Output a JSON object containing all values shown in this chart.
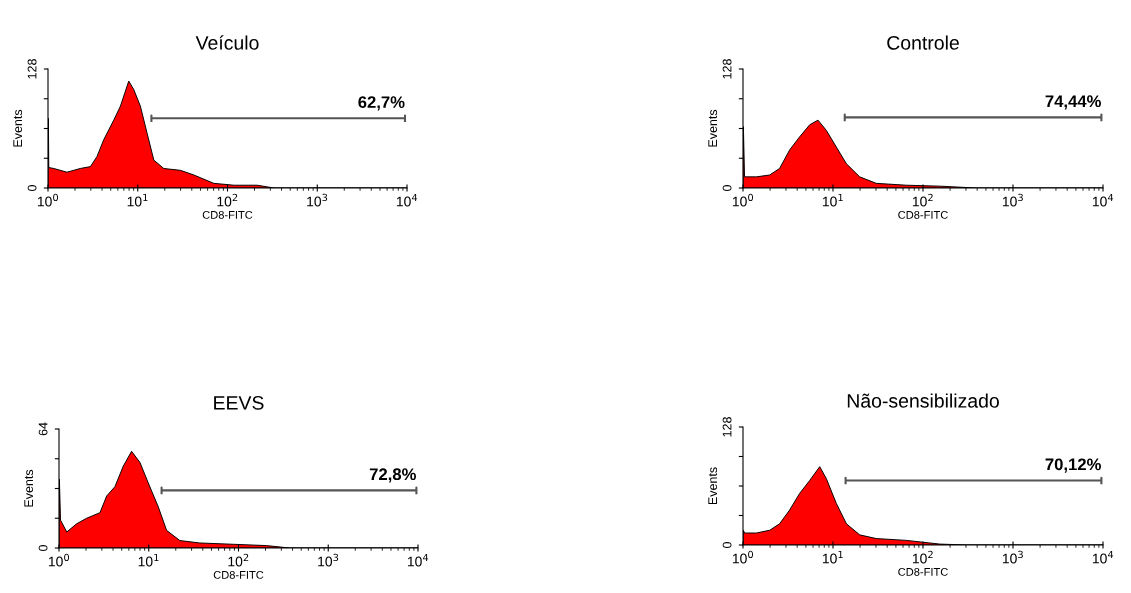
{
  "chart_data": [
    {
      "type": "area",
      "title": "Veículo",
      "xlabel": "CD8-FITC",
      "ylabel": "Events",
      "log": "x",
      "grid": false,
      "xlim": [
        1,
        10000
      ],
      "ylim": [
        0,
        128
      ],
      "xticks": [
        {
          "value": 1,
          "label": "10$^{0}$"
        },
        {
          "value": 10,
          "label": "10$^{1}$"
        },
        {
          "value": 100,
          "label": "10$^{2}$"
        },
        {
          "value": 1000,
          "label": "10$^{3}$"
        },
        {
          "value": 10000,
          "label": "10$^{4}$"
        }
      ],
      "yticks": [
        0,
        {
          "value": 32,
          "label": null
        },
        {
          "value": 64,
          "label": null
        },
        {
          "value": 96,
          "label": null
        },
        128
      ],
      "series": [
        {
          "type": "area",
          "color": "#ff0000",
          "x": [
            1.0,
            1.01,
            1.02,
            1.16,
            1.63,
            2.29,
            2.97,
            3.52,
            4.18,
            5.4,
            6.41,
            7.94,
            9.02,
            10.7,
            12.7,
            15.1,
            19.5,
            29.9,
            42.2,
            70.4,
            118,
            214,
            330,
            10000
          ],
          "values": [
            0,
            75,
            22,
            21,
            17,
            21,
            23,
            34,
            52,
            73,
            88,
            115,
            106,
            88,
            59,
            30,
            21,
            19,
            14,
            5,
            3,
            3,
            0,
            0
          ]
        },
        {
          "type": "line",
          "color": "#555555",
          "x": [
            14.2,
            14.2,
            14.2,
            9500,
            9500,
            9500
          ],
          "values": [
            72,
            78,
            75,
            75,
            78,
            72
          ]
        }
      ],
      "annotations": [
        "62,7%"
      ]
    },
    {
      "type": "area",
      "title": "Controle",
      "xlabel": "CD8-FITC",
      "ylabel": "Events",
      "log": "x",
      "grid": false,
      "xlim": [
        1,
        10000
      ],
      "ylim": [
        0,
        128
      ],
      "xticks": [
        {
          "value": 1,
          "label": "10$^{0}$"
        },
        {
          "value": 10,
          "label": "10$^{1}$"
        },
        {
          "value": 100,
          "label": "10$^{2}$"
        },
        {
          "value": 1000,
          "label": "10$^{3}$"
        },
        {
          "value": 10000,
          "label": "10$^{4}$"
        }
      ],
      "yticks": [
        0,
        {
          "value": 32,
          "label": null
        },
        {
          "value": 64,
          "label": null
        },
        {
          "value": 96,
          "label": null
        },
        128
      ],
      "series": [
        {
          "type": "area",
          "color": "#ff0000",
          "x": [
            1.0,
            1.01,
            1.04,
            1.41,
            1.98,
            2.55,
            3.3,
            4.26,
            5.51,
            6.81,
            8.43,
            10.9,
            14.1,
            19.8,
            30.2,
            65.3,
            153,
            390,
            10000
          ],
          "values": [
            0,
            66,
            12,
            12,
            14,
            21,
            41,
            55,
            68,
            73,
            62,
            44,
            26,
            12,
            5,
            3,
            2,
            0,
            0
          ]
        },
        {
          "type": "line",
          "color": "#555555",
          "x": [
            13.5,
            13.5,
            13.5,
            9600,
            9600,
            9600
          ],
          "values": [
            73,
            79,
            76,
            76,
            79,
            73
          ]
        }
      ],
      "annotations": [
        "74,44%"
      ]
    },
    {
      "type": "area",
      "title": "EEVS",
      "xlabel": "CD8-FITC",
      "ylabel": "Events",
      "log": "x",
      "grid": false,
      "xlim": [
        1,
        10000
      ],
      "ylim": [
        0,
        64
      ],
      "xticks": [
        {
          "value": 1,
          "label": "10$^{0}$"
        },
        {
          "value": 10,
          "label": "10$^{1}$"
        },
        {
          "value": 100,
          "label": "10$^{2}$"
        },
        {
          "value": 1000,
          "label": "10$^{3}$"
        },
        {
          "value": 10000,
          "label": "10$^{4}$"
        }
      ],
      "yticks": [
        0,
        {
          "value": 16,
          "label": null
        },
        {
          "value": 32,
          "label": null
        },
        {
          "value": 48,
          "label": null
        },
        64
      ],
      "series": [
        {
          "type": "area",
          "color": "#ff0000",
          "x": [
            1.0,
            1.01,
            1.04,
            1.22,
            1.57,
            2.03,
            2.86,
            3.4,
            4.2,
            5.2,
            6.44,
            7.98,
            9.87,
            12.8,
            15.8,
            22.2,
            37.1,
            87.6,
            204,
            372,
            10000
          ],
          "values": [
            0,
            37,
            15,
            8.6,
            13,
            16,
            19,
            28,
            33,
            44,
            52,
            46,
            35,
            22,
            9.5,
            4,
            2.7,
            2,
            1.3,
            0,
            0
          ]
        },
        {
          "type": "line",
          "color": "#555555",
          "x": [
            13.9,
            13.9,
            13.9,
            9600,
            9600,
            9600
          ],
          "values": [
            29.5,
            32.5,
            31,
            31,
            32.5,
            29.5
          ]
        }
      ],
      "annotations": [
        "72,8%"
      ]
    },
    {
      "type": "area",
      "title": "Não-sensibilizado",
      "xlabel": "CD8-FITC",
      "ylabel": "Events",
      "log": "x",
      "grid": false,
      "xlim": [
        1,
        10000
      ],
      "ylim": [
        0,
        128
      ],
      "xticks": [
        {
          "value": 1,
          "label": "10$^{0}$"
        },
        {
          "value": 10,
          "label": "10$^{1}$"
        },
        {
          "value": 100,
          "label": "10$^{2}$"
        },
        {
          "value": 1000,
          "label": "10$^{3}$"
        },
        {
          "value": 10000,
          "label": "10$^{4}$"
        }
      ],
      "yticks": [
        0,
        {
          "value": 32,
          "label": null
        },
        {
          "value": 64,
          "label": null
        },
        {
          "value": 96,
          "label": null
        },
        128
      ],
      "series": [
        {
          "type": "area",
          "color": "#ff0000",
          "x": [
            1.0,
            1.01,
            1.04,
            1.41,
            1.98,
            2.55,
            3.3,
            4.26,
            5.51,
            7.12,
            8.43,
            10.9,
            14.1,
            19.8,
            30.2,
            65.3,
            153,
            302,
            10000
          ],
          "values": [
            0,
            16,
            13,
            13,
            16,
            23,
            38,
            56,
            70,
            85,
            72,
            45,
            23,
            11,
            7,
            5,
            1,
            0,
            0
          ]
        },
        {
          "type": "line",
          "color": "#555555",
          "x": [
            13.8,
            13.8,
            13.8,
            9600,
            9600,
            9600
          ],
          "values": [
            67,
            73,
            70,
            70,
            73,
            67
          ]
        }
      ],
      "annotations": [
        "70,12%"
      ]
    }
  ]
}
